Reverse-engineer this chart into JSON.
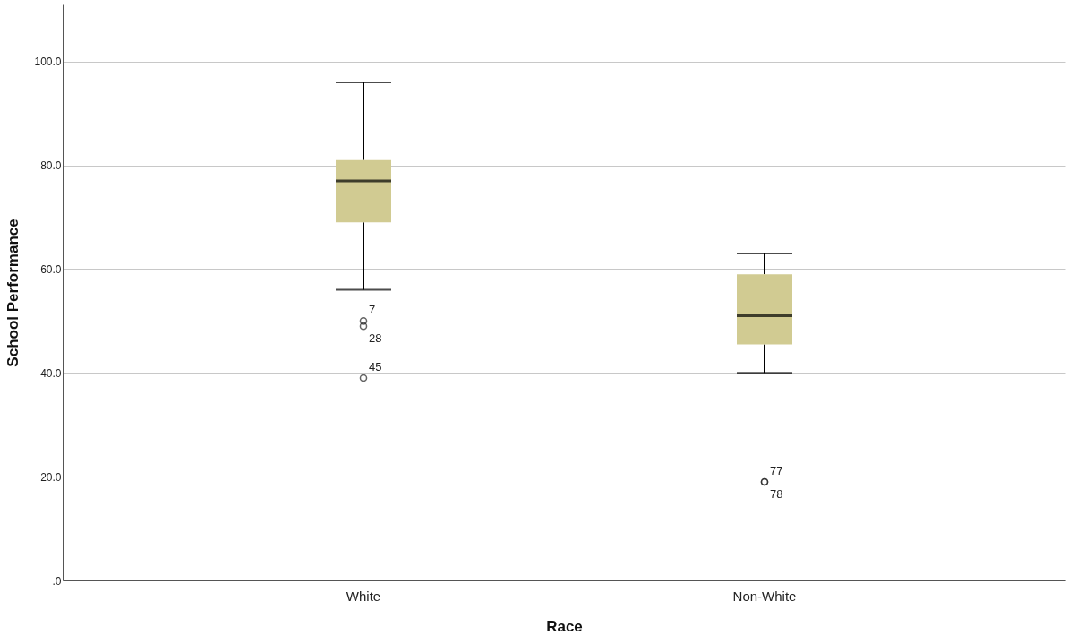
{
  "chart_data": {
    "type": "box",
    "xlabel": "Race",
    "ylabel": "School Performance",
    "categories": [
      "White",
      "Non-White"
    ],
    "boxes": [
      {
        "low": 56,
        "q1": 69,
        "median": 77,
        "q3": 81,
        "high": 96,
        "outliers": [
          50,
          49,
          39
        ]
      },
      {
        "low": 40,
        "q1": 45.5,
        "median": 51,
        "q3": 59,
        "high": 63,
        "outliers": [
          19,
          19
        ]
      }
    ],
    "color": "#d1cb92",
    "ylim": [
      0,
      111
    ],
    "yticks": [
      {
        "value": 0,
        "label": ".0"
      },
      {
        "value": 20,
        "label": "20.0"
      },
      {
        "value": 40,
        "label": "40.0"
      },
      {
        "value": 60,
        "label": "60.0"
      },
      {
        "value": 80,
        "label": "80.0"
      },
      {
        "value": 100,
        "label": "100.0"
      }
    ],
    "grid": "y",
    "annotations": [
      "7",
      "28",
      "45",
      "77",
      "78"
    ]
  }
}
